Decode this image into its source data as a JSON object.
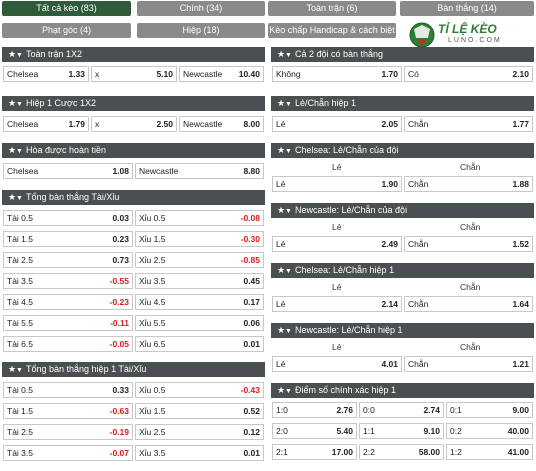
{
  "tabs": [
    {
      "label": "Tất cả kèo (83)",
      "active": true
    },
    {
      "label": "Chính (34)",
      "active": false
    },
    {
      "label": "Toàn trận (6)",
      "active": false
    },
    {
      "label": "Bàn thắng (14)",
      "active": false
    },
    {
      "label": "Phạt góc (4)",
      "active": false
    },
    {
      "label": "Hiệp (18)",
      "active": false
    },
    {
      "label": "Kèo chấp Handicap & cách biệt (5)",
      "active": false
    }
  ],
  "logo": {
    "top": "TỈ LỆ KÈO",
    "bottom": "LUNO.COM"
  },
  "left": {
    "fulltime_1x2": {
      "title": "Toàn trận 1X2",
      "cells": [
        {
          "label": "Chelsea",
          "value": "1.33"
        },
        {
          "label": "x",
          "value": "5.10"
        },
        {
          "label": "Newcastle",
          "value": "10.40"
        }
      ]
    },
    "half1_1x2": {
      "title": "Hiệp 1 Cược 1X2",
      "cells": [
        {
          "label": "Chelsea",
          "value": "1.79"
        },
        {
          "label": "x",
          "value": "2.50"
        },
        {
          "label": "Newcastle",
          "value": "8.00"
        }
      ]
    },
    "draw_no_bet": {
      "title": "Hòa được hoàn tiền",
      "cells": [
        {
          "label": "Chelsea",
          "value": "1.08"
        },
        {
          "label": "Newcastle",
          "value": "8.80"
        }
      ]
    },
    "total_goals": {
      "title": "Tổng bàn thắng Tài/Xỉu",
      "rows": [
        {
          "over": "Tài 0.5",
          "ov": "0.03",
          "ovneg": false,
          "under": "Xỉu 0.5",
          "uv": "-0.08",
          "uvneg": true
        },
        {
          "over": "Tài 1.5",
          "ov": "0.23",
          "ovneg": false,
          "under": "Xỉu 1.5",
          "uv": "-0.30",
          "uvneg": true
        },
        {
          "over": "Tài 2.5",
          "ov": "0.73",
          "ovneg": false,
          "under": "Xỉu 2.5",
          "uv": "-0.85",
          "uvneg": true
        },
        {
          "over": "Tài 3.5",
          "ov": "-0.55",
          "ovneg": true,
          "under": "Xỉu 3.5",
          "uv": "0.45",
          "uvneg": false
        },
        {
          "over": "Tài 4.5",
          "ov": "-0.23",
          "ovneg": true,
          "under": "Xỉu 4.5",
          "uv": "0.17",
          "uvneg": false
        },
        {
          "over": "Tài 5.5",
          "ov": "-0.11",
          "ovneg": true,
          "under": "Xỉu 5.5",
          "uv": "0.06",
          "uvneg": false
        },
        {
          "over": "Tài 6.5",
          "ov": "-0.05",
          "ovneg": true,
          "under": "Xỉu 6.5",
          "uv": "0.01",
          "uvneg": false
        }
      ]
    },
    "half1_total": {
      "title": "Tổng bàn thắng hiệp 1 Tài/Xỉu",
      "rows": [
        {
          "over": "Tài 0.5",
          "ov": "0.33",
          "ovneg": false,
          "under": "Xỉu 0.5",
          "uv": "-0.43",
          "uvneg": true
        },
        {
          "over": "Tài 1.5",
          "ov": "-0.63",
          "ovneg": true,
          "under": "Xỉu 1.5",
          "uv": "0.52",
          "uvneg": false
        },
        {
          "over": "Tài 2.5",
          "ov": "-0.19",
          "ovneg": true,
          "under": "Xỉu 2.5",
          "uv": "0.12",
          "uvneg": false
        },
        {
          "over": "Tài 3.5",
          "ov": "-0.07",
          "ovneg": true,
          "under": "Xỉu 3.5",
          "uv": "0.01",
          "uvneg": false
        }
      ]
    }
  },
  "right": {
    "btts": {
      "title": "Cả 2 đội có bàn thắng",
      "cells": [
        {
          "label": "Không",
          "value": "1.70"
        },
        {
          "label": "Có",
          "value": "2.10"
        }
      ]
    },
    "odd_even_h1": {
      "title": "Lẻ/Chẵn hiệp 1",
      "cells": [
        {
          "label": "Lẻ",
          "value": "2.05"
        },
        {
          "label": "Chẵn",
          "value": "1.77"
        }
      ]
    },
    "chelsea_oe": {
      "title": "Chelsea: Lẻ/Chẵn của đội",
      "sub": [
        "Lẻ",
        "Chẵn"
      ],
      "cells": [
        {
          "label": "Lẻ",
          "value": "1.90"
        },
        {
          "label": "Chẵn",
          "value": "1.88"
        }
      ]
    },
    "newcastle_oe": {
      "title": "Newcastle: Lẻ/Chẵn của đội",
      "sub": [
        "Lẻ",
        "Chẵn"
      ],
      "cells": [
        {
          "label": "Lẻ",
          "value": "2.49"
        },
        {
          "label": "Chẵn",
          "value": "1.52"
        }
      ]
    },
    "chelsea_oe_h1": {
      "title": "Chelsea: Lẻ/Chẵn hiệp 1",
      "sub": [
        "Lẻ",
        "Chẵn"
      ],
      "cells": [
        {
          "label": "Lẻ",
          "value": "2.14"
        },
        {
          "label": "Chẵn",
          "value": "1.64"
        }
      ]
    },
    "newcastle_oe_h1": {
      "title": "Newcastle: Lẻ/Chẵn hiệp 1",
      "sub": [
        "Lẻ",
        "Chẵn"
      ],
      "cells": [
        {
          "label": "Lẻ",
          "value": "4.01"
        },
        {
          "label": "Chẵn",
          "value": "1.21"
        }
      ]
    },
    "correct_score_h1": {
      "title": "Điểm số chính xác hiệp 1",
      "rows": [
        [
          {
            "label": "1:0",
            "value": "2.76"
          },
          {
            "label": "0:0",
            "value": "2.74"
          },
          {
            "label": "0:1",
            "value": "9.00"
          }
        ],
        [
          {
            "label": "2:0",
            "value": "5.40"
          },
          {
            "label": "1:1",
            "value": "9.10"
          },
          {
            "label": "0:2",
            "value": "40.00"
          }
        ],
        [
          {
            "label": "2:1",
            "value": "17.00"
          },
          {
            "label": "2:2",
            "value": "58.00"
          },
          {
            "label": "1:2",
            "value": "41.00"
          }
        ]
      ]
    }
  }
}
